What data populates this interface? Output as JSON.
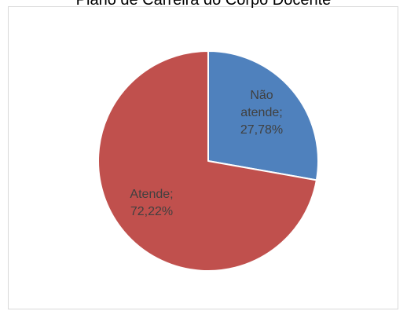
{
  "chart_data": {
    "type": "pie",
    "title": "Plano de Carreira do Corpo Docente",
    "slices": [
      {
        "name": "Não atende",
        "value": 27.78,
        "color": "#4f81bd",
        "label_lines": [
          "Não",
          "atende;",
          "27,78%"
        ]
      },
      {
        "name": "Atende",
        "value": 72.22,
        "color": "#c0504d",
        "label_lines": [
          "Atende;",
          "72,22%"
        ]
      }
    ],
    "start_angle_deg": 0,
    "direction": "clockwise",
    "label_color": "#404040",
    "legend": "none"
  }
}
